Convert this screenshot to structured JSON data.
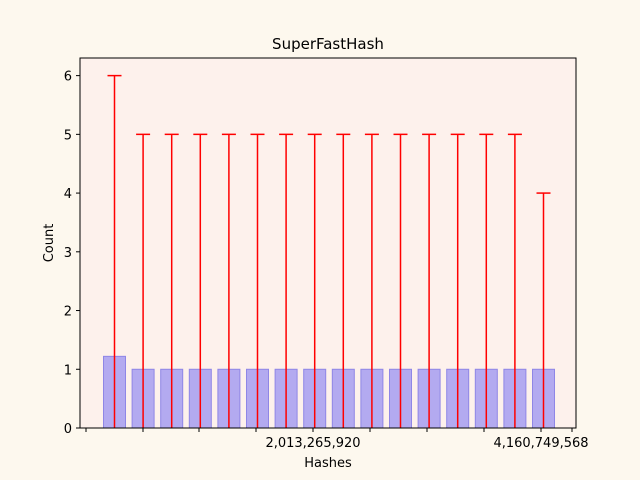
{
  "chart_data": {
    "type": "bar",
    "title": "SuperFastHash",
    "xlabel": "Hashes",
    "ylabel": "Count",
    "ylim": [
      0,
      6.3
    ],
    "yticks": [
      0,
      1,
      2,
      3,
      4,
      5,
      6
    ],
    "x_tick_labels": [
      "2,013,265,920",
      "4,160,749,568"
    ],
    "grid": false,
    "colors": {
      "figure_bg": "#fdf8ee",
      "plot_bg": "#fdf1ec",
      "bar_fill": "#b3aaf0",
      "bar_edge": "#8f86e6",
      "error_bar": "#ff0000"
    },
    "series": [
      {
        "bar_values": [
          1.22,
          1,
          1,
          1,
          1,
          1,
          1,
          1,
          1,
          1,
          1,
          1,
          1,
          1,
          1,
          1
        ],
        "error_upper": [
          6,
          5,
          5,
          5,
          5,
          5,
          5,
          5,
          5,
          5,
          5,
          5,
          5,
          5,
          5,
          4
        ]
      }
    ]
  }
}
